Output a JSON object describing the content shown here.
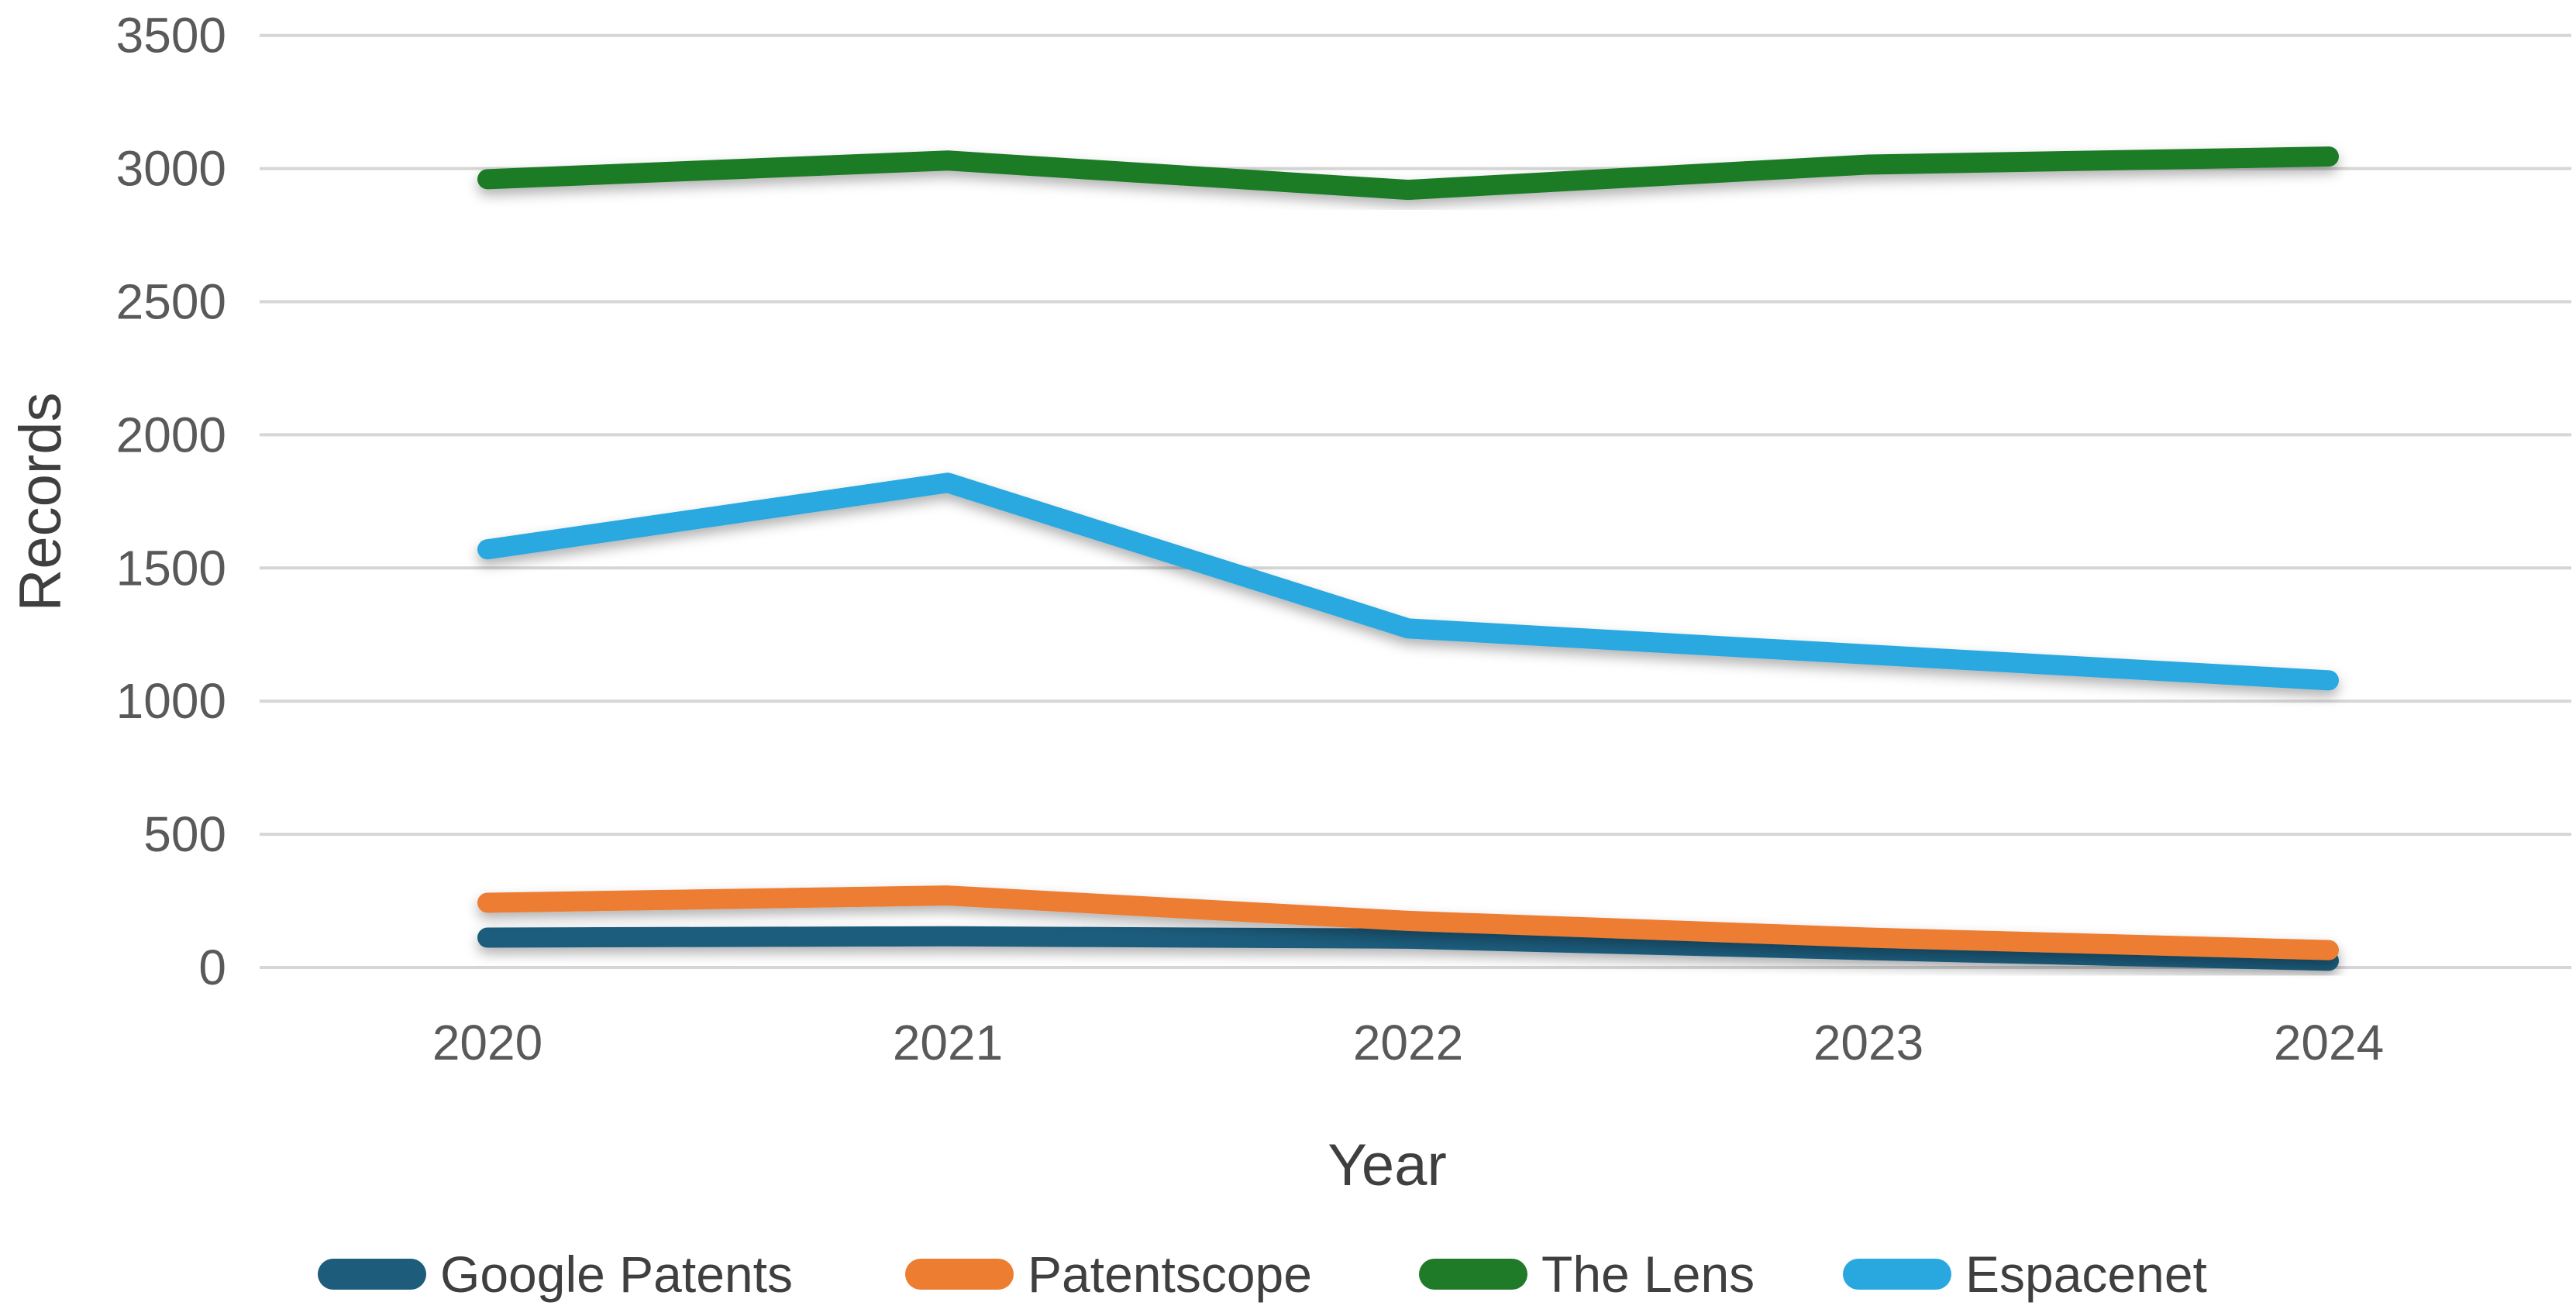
{
  "chart_data": {
    "type": "line",
    "title": "",
    "xlabel": "Year",
    "ylabel": "Records",
    "categories": [
      "2020",
      "2021",
      "2022",
      "2023",
      "2024"
    ],
    "yticks": [
      0,
      500,
      1000,
      1500,
      2000,
      2500,
      3000,
      3500
    ],
    "ylim": [
      0,
      3500
    ],
    "grid": "horizontal",
    "legend_position": "bottom",
    "series": [
      {
        "name": "Google Patents",
        "color": "#1E5C7B",
        "values": [
          112,
          117,
          108,
          65,
          25
        ]
      },
      {
        "name": "Patentscope",
        "color": "#ED7D31",
        "values": [
          243,
          270,
          175,
          112,
          65
        ]
      },
      {
        "name": "The Lens",
        "color": "#1F7B28",
        "values": [
          2960,
          3030,
          2920,
          3015,
          3045
        ]
      },
      {
        "name": "Espacenet",
        "color": "#29A8E0",
        "values": [
          1570,
          1820,
          1273,
          1175,
          1078
        ]
      }
    ]
  },
  "axes": {
    "x_title": "Year",
    "y_title": "Records"
  },
  "colors": {
    "background": "#FFFFFF",
    "grid": "#D6D6D6",
    "tick_text": "#595959",
    "axis_title_text": "#3F3F3F",
    "legend_text": "#3F3F3F"
  }
}
